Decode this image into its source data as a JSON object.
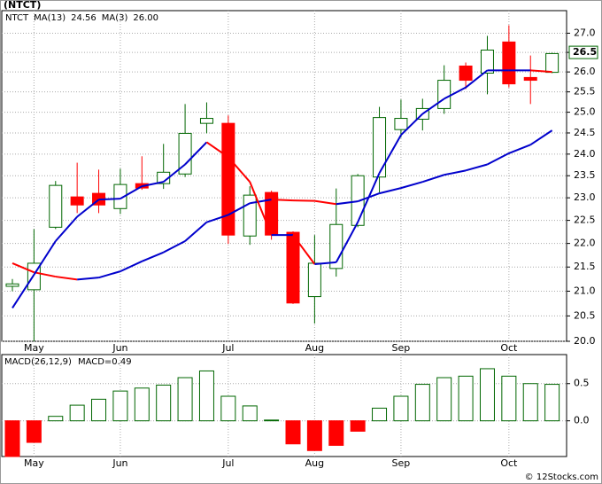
{
  "title": "(NTCT)",
  "footer": "© 12Stocks.com",
  "chart_data": [
    {
      "type": "candlestick",
      "symbol": "NTCT",
      "categories": [
        null,
        "May",
        null,
        null,
        null,
        "Jun",
        null,
        null,
        null,
        null,
        "Jul",
        null,
        null,
        null,
        "Aug",
        null,
        null,
        null,
        "Sep",
        null,
        null,
        null,
        null,
        "Oct",
        null,
        null
      ],
      "open": [
        21.1,
        21.03,
        22.35,
        23.02,
        23.1,
        22.76,
        23.32,
        23.32,
        23.54,
        24.73,
        24.73,
        22.16,
        23.12,
        22.24,
        20.89,
        21.47,
        22.39,
        23.47,
        24.58,
        24.83,
        25.09,
        26.15,
        25.97,
        26.77,
        25.86,
        25.99
      ],
      "high": [
        21.25,
        22.31,
        23.38,
        23.8,
        23.64,
        23.66,
        23.95,
        24.24,
        25.2,
        25.24,
        24.92,
        23.26,
        23.16,
        22.26,
        22.18,
        23.21,
        23.54,
        25.13,
        25.31,
        25.33,
        26.17,
        26.24,
        26.93,
        27.21,
        26.42,
        26.49
      ],
      "low": [
        21.0,
        20.0,
        22.31,
        22.66,
        22.66,
        22.64,
        23.18,
        23.2,
        23.47,
        24.49,
        21.99,
        21.97,
        22.08,
        20.74,
        20.35,
        21.3,
        22.35,
        23.12,
        24.39,
        24.56,
        24.96,
        25.57,
        25.44,
        25.61,
        25.2,
        25.97
      ],
      "close": [
        21.15,
        21.58,
        23.28,
        22.84,
        22.84,
        23.3,
        23.22,
        23.58,
        24.49,
        24.85,
        22.18,
        23.06,
        22.18,
        20.76,
        21.58,
        22.41,
        23.5,
        24.87,
        24.85,
        25.09,
        25.79,
        25.79,
        26.56,
        25.7,
        25.79,
        26.47
      ],
      "up_color": "#006600",
      "down_color": "#ff0000",
      "falling_color": "#ff0000",
      "series": [
        {
          "name": "MA(13)",
          "last_label": "24.56",
          "color": "#0000cc",
          "values": [
            21.58,
            21.39,
            21.3,
            21.24,
            21.28,
            21.41,
            21.62,
            21.81,
            22.05,
            22.46,
            22.62,
            22.88,
            22.96,
            22.94,
            22.93,
            22.86,
            22.92,
            23.1,
            23.22,
            23.36,
            23.52,
            23.62,
            23.76,
            24.02,
            24.22,
            24.56
          ]
        },
        {
          "name": "MA(3)",
          "last_label": "26.00",
          "color": "#0000cc",
          "values": [
            20.66,
            21.34,
            22.05,
            22.58,
            22.96,
            22.98,
            23.26,
            23.36,
            23.76,
            24.28,
            23.93,
            23.36,
            22.18,
            22.18,
            21.56,
            21.6,
            22.46,
            23.56,
            24.45,
            24.96,
            25.33,
            25.61,
            26.04,
            26.04,
            26.04,
            26.0
          ]
        }
      ],
      "last_price": 26.5,
      "log_scale": true,
      "grid": true,
      "ylim": [
        20,
        27.6
      ],
      "yticks": [
        {
          "value": 20,
          "label": "20.0"
        },
        20.5,
        {
          "value": 21,
          "label": "21.0"
        },
        21.5,
        {
          "value": 22,
          "label": "22.0"
        },
        22.5,
        {
          "value": 23,
          "label": "23.0"
        },
        23.5,
        {
          "value": 24,
          "label": "24.0"
        },
        24.5,
        {
          "value": 25,
          "label": "25.0"
        },
        25.5,
        {
          "value": 26,
          "label": "26.0"
        },
        26.5,
        {
          "value": 27,
          "label": "27.0"
        }
      ]
    },
    {
      "type": "bar",
      "title": "MACD(26,12,9)",
      "current_label": "MACD=0.49",
      "values": [
        -0.48,
        -0.29,
        0.06,
        0.21,
        0.29,
        0.4,
        0.44,
        0.48,
        0.58,
        0.67,
        0.33,
        0.2,
        0.01,
        -0.31,
        -0.4,
        -0.33,
        -0.14,
        0.17,
        0.33,
        0.49,
        0.58,
        0.6,
        0.7,
        0.6,
        0.5,
        0.49
      ],
      "up_color": "#006600",
      "down_color": "#ff0000",
      "ylim": [
        -0.48,
        0.89
      ],
      "yticks": [
        {
          "value": 0,
          "label": "0.0"
        },
        0.5
      ],
      "grid": true
    }
  ]
}
